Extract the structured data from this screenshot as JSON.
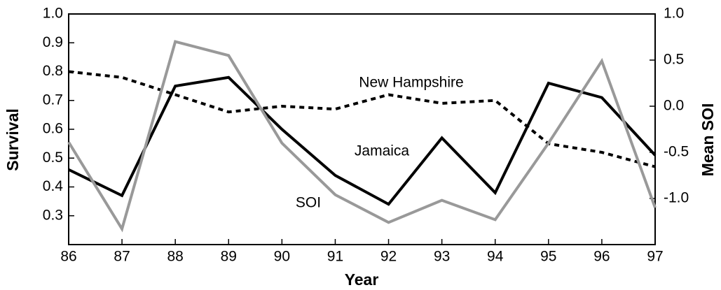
{
  "chart_data": {
    "type": "line",
    "x": [
      86,
      87,
      88,
      89,
      90,
      91,
      92,
      93,
      94,
      95,
      96,
      97
    ],
    "xlim": [
      86,
      97
    ],
    "xticks": [
      86,
      87,
      88,
      89,
      90,
      91,
      92,
      93,
      94,
      95,
      96,
      97
    ],
    "xlabel": "Year",
    "ylabel": "Survival",
    "y2label": "Mean SOI",
    "ylim": [
      0.2,
      1.0
    ],
    "yticks": [
      0.3,
      0.4,
      0.5,
      0.6,
      0.7,
      0.8,
      0.9,
      {
        "value": 1,
        "label": "1.0"
      }
    ],
    "y2lim": [
      -1.5,
      1.0
    ],
    "y2ticks": [
      {
        "value": -1,
        "label": "-1.0"
      },
      -0.5,
      {
        "value": 0,
        "label": "0.0"
      },
      0.5,
      {
        "value": 1,
        "label": "1.0"
      }
    ],
    "series": [
      {
        "name": "New Hampshire",
        "color": "#000000",
        "dashed": true,
        "values": [
          0.8,
          0.78,
          0.72,
          0.66,
          0.68,
          0.67,
          0.72,
          0.69,
          0.7,
          0.55,
          0.52,
          0.47
        ]
      },
      {
        "name": "Jamaica",
        "color": "#000000",
        "values": [
          0.46,
          0.37,
          0.75,
          0.78,
          0.6,
          0.44,
          0.34,
          0.57,
          0.38,
          0.76,
          0.71,
          0.51
        ]
      },
      {
        "name": "SOI",
        "color": "#999999",
        "axis": "y2",
        "values": [
          -0.39,
          -1.33,
          0.7,
          0.55,
          -0.4,
          -0.96,
          -1.26,
          -1.02,
          -1.23,
          -0.4,
          0.49,
          -1.1
        ]
      }
    ]
  }
}
